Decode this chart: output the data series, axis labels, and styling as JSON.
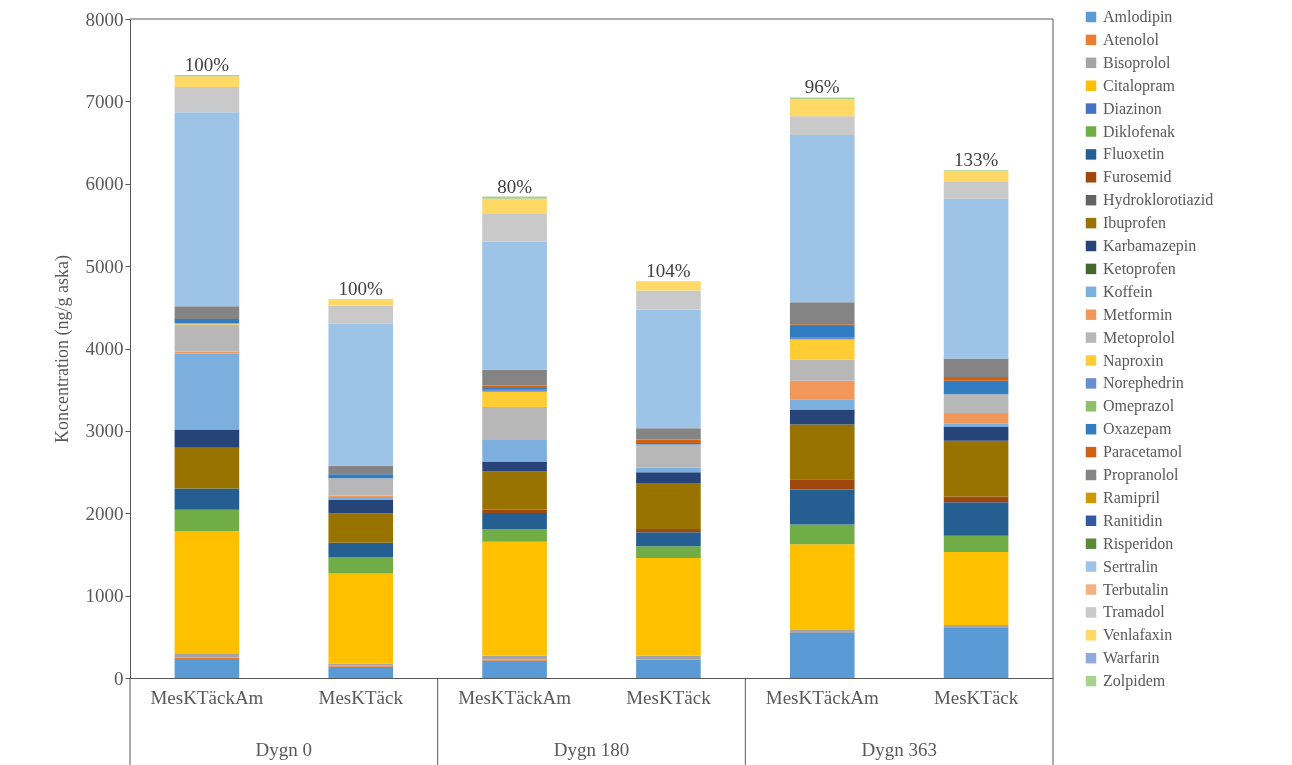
{
  "chart_data": {
    "type": "bar",
    "stacked": true,
    "ylabel": "Koncentration (ng/g aska)",
    "categories": [
      "MesKTäckAm",
      "MesKTäck",
      "MesKTäckAm",
      "MesKTäck",
      "MesKTäckAm",
      "MesKTäck"
    ],
    "ylim": [
      0,
      8000
    ],
    "yticks": [
      0,
      1000,
      2000,
      3000,
      4000,
      5000,
      6000,
      7000,
      8000
    ],
    "grid": false,
    "legend": "right",
    "annotations": [
      "Dygn 0",
      "Dygn 180",
      "Dygn 363",
      "100%",
      "100%",
      "80%",
      "104%",
      "96%",
      "133%"
    ],
    "series": [
      {
        "name": "Amlodipin",
        "color": "#5b9bd5",
        "values": [
          230,
          136,
          210,
          223,
          546,
          616
        ]
      },
      {
        "name": "Atenolol",
        "color": "#ed7d31",
        "values": [
          15,
          15,
          16,
          0,
          0,
          0
        ]
      },
      {
        "name": "Bisoprolol",
        "color": "#a5a5a5",
        "values": [
          55,
          25,
          45,
          49,
          37,
          28
        ]
      },
      {
        "name": "Citalopram",
        "color": "#ffc000",
        "values": [
          1480,
          1093,
          1384,
          1186,
          1041,
          887
        ]
      },
      {
        "name": "Diazinon",
        "color": "#4472c4",
        "values": [
          0,
          0,
          0,
          0,
          0,
          0
        ]
      },
      {
        "name": "Diklofenak",
        "color": "#70ad47",
        "values": [
          262,
          194,
          154,
          142,
          238,
          196
        ]
      },
      {
        "name": "Fluoxetin",
        "color": "#255e91",
        "values": [
          257,
          180,
          194,
          170,
          425,
          406
        ]
      },
      {
        "name": "Furosemid",
        "color": "#9e480e",
        "values": [
          0,
          0,
          40,
          40,
          126,
          70
        ]
      },
      {
        "name": "Hydroklorotiazid",
        "color": "#636363",
        "values": [
          0,
          0,
          0,
          0,
          0,
          0
        ]
      },
      {
        "name": "Ibuprofen",
        "color": "#997300",
        "values": [
          495,
          354,
          465,
          558,
          663,
          677
        ]
      },
      {
        "name": "Karbamazepin",
        "color": "#264478",
        "values": [
          223,
          165,
          121,
          130,
          182,
          168
        ]
      },
      {
        "name": "Ketoprofen",
        "color": "#43682b",
        "values": [
          0,
          0,
          0,
          0,
          0,
          0
        ]
      },
      {
        "name": "Koffein",
        "color": "#7cafdd",
        "values": [
          923,
          34,
          259,
          57,
          126,
          37
        ]
      },
      {
        "name": "Metformin",
        "color": "#f1975a",
        "values": [
          20,
          15,
          0,
          0,
          224,
          131
        ]
      },
      {
        "name": "Metoprolol",
        "color": "#b7b7b7",
        "values": [
          330,
          214,
          401,
          279,
          257,
          229
        ]
      },
      {
        "name": "Naproxin",
        "color": "#ffcd33",
        "values": [
          15,
          0,
          186,
          0,
          243,
          0
        ]
      },
      {
        "name": "Norephedrin",
        "color": "#698ed0",
        "values": [
          0,
          0,
          24,
          0,
          33,
          0
        ]
      },
      {
        "name": "Omeprazol",
        "color": "#8cc168",
        "values": [
          0,
          0,
          0,
          0,
          0,
          0
        ]
      },
      {
        "name": "Oxazepam",
        "color": "#327dc2",
        "values": [
          53,
          49,
          20,
          20,
          131,
          163
        ]
      },
      {
        "name": "Paracetamol",
        "color": "#d26012",
        "values": [
          0,
          0,
          32,
          40,
          23,
          47
        ]
      },
      {
        "name": "Propranolol",
        "color": "#848484",
        "values": [
          155,
          102,
          190,
          138,
          266,
          224
        ]
      },
      {
        "name": "Ramipril",
        "color": "#cc9a00",
        "values": [
          0,
          0,
          0,
          0,
          0,
          0
        ]
      },
      {
        "name": "Ranitidin",
        "color": "#335aa1",
        "values": [
          0,
          0,
          0,
          0,
          0,
          0
        ]
      },
      {
        "name": "Risperidon",
        "color": "#5a8a39",
        "values": [
          0,
          0,
          0,
          0,
          0,
          0
        ]
      },
      {
        "name": "Sertralin",
        "color": "#9dc3e6",
        "values": [
          2355,
          1729,
          1558,
          1441,
          2030,
          1940
        ]
      },
      {
        "name": "Terbutalin",
        "color": "#f4b183",
        "values": [
          0,
          0,
          0,
          0,
          0,
          0
        ]
      },
      {
        "name": "Tramadol",
        "color": "#c9c9c9",
        "values": [
          306,
          214,
          344,
          231,
          229,
          201
        ]
      },
      {
        "name": "Venlafaxin",
        "color": "#ffd966",
        "values": [
          131,
          83,
          174,
          113,
          205,
          131
        ]
      },
      {
        "name": "Warfarin",
        "color": "#8faadc",
        "values": [
          0,
          0,
          0,
          0,
          0,
          0
        ]
      },
      {
        "name": "Zolpidem",
        "color": "#a9d18e",
        "values": [
          15,
          0,
          28,
          0,
          23,
          14
        ]
      }
    ]
  }
}
